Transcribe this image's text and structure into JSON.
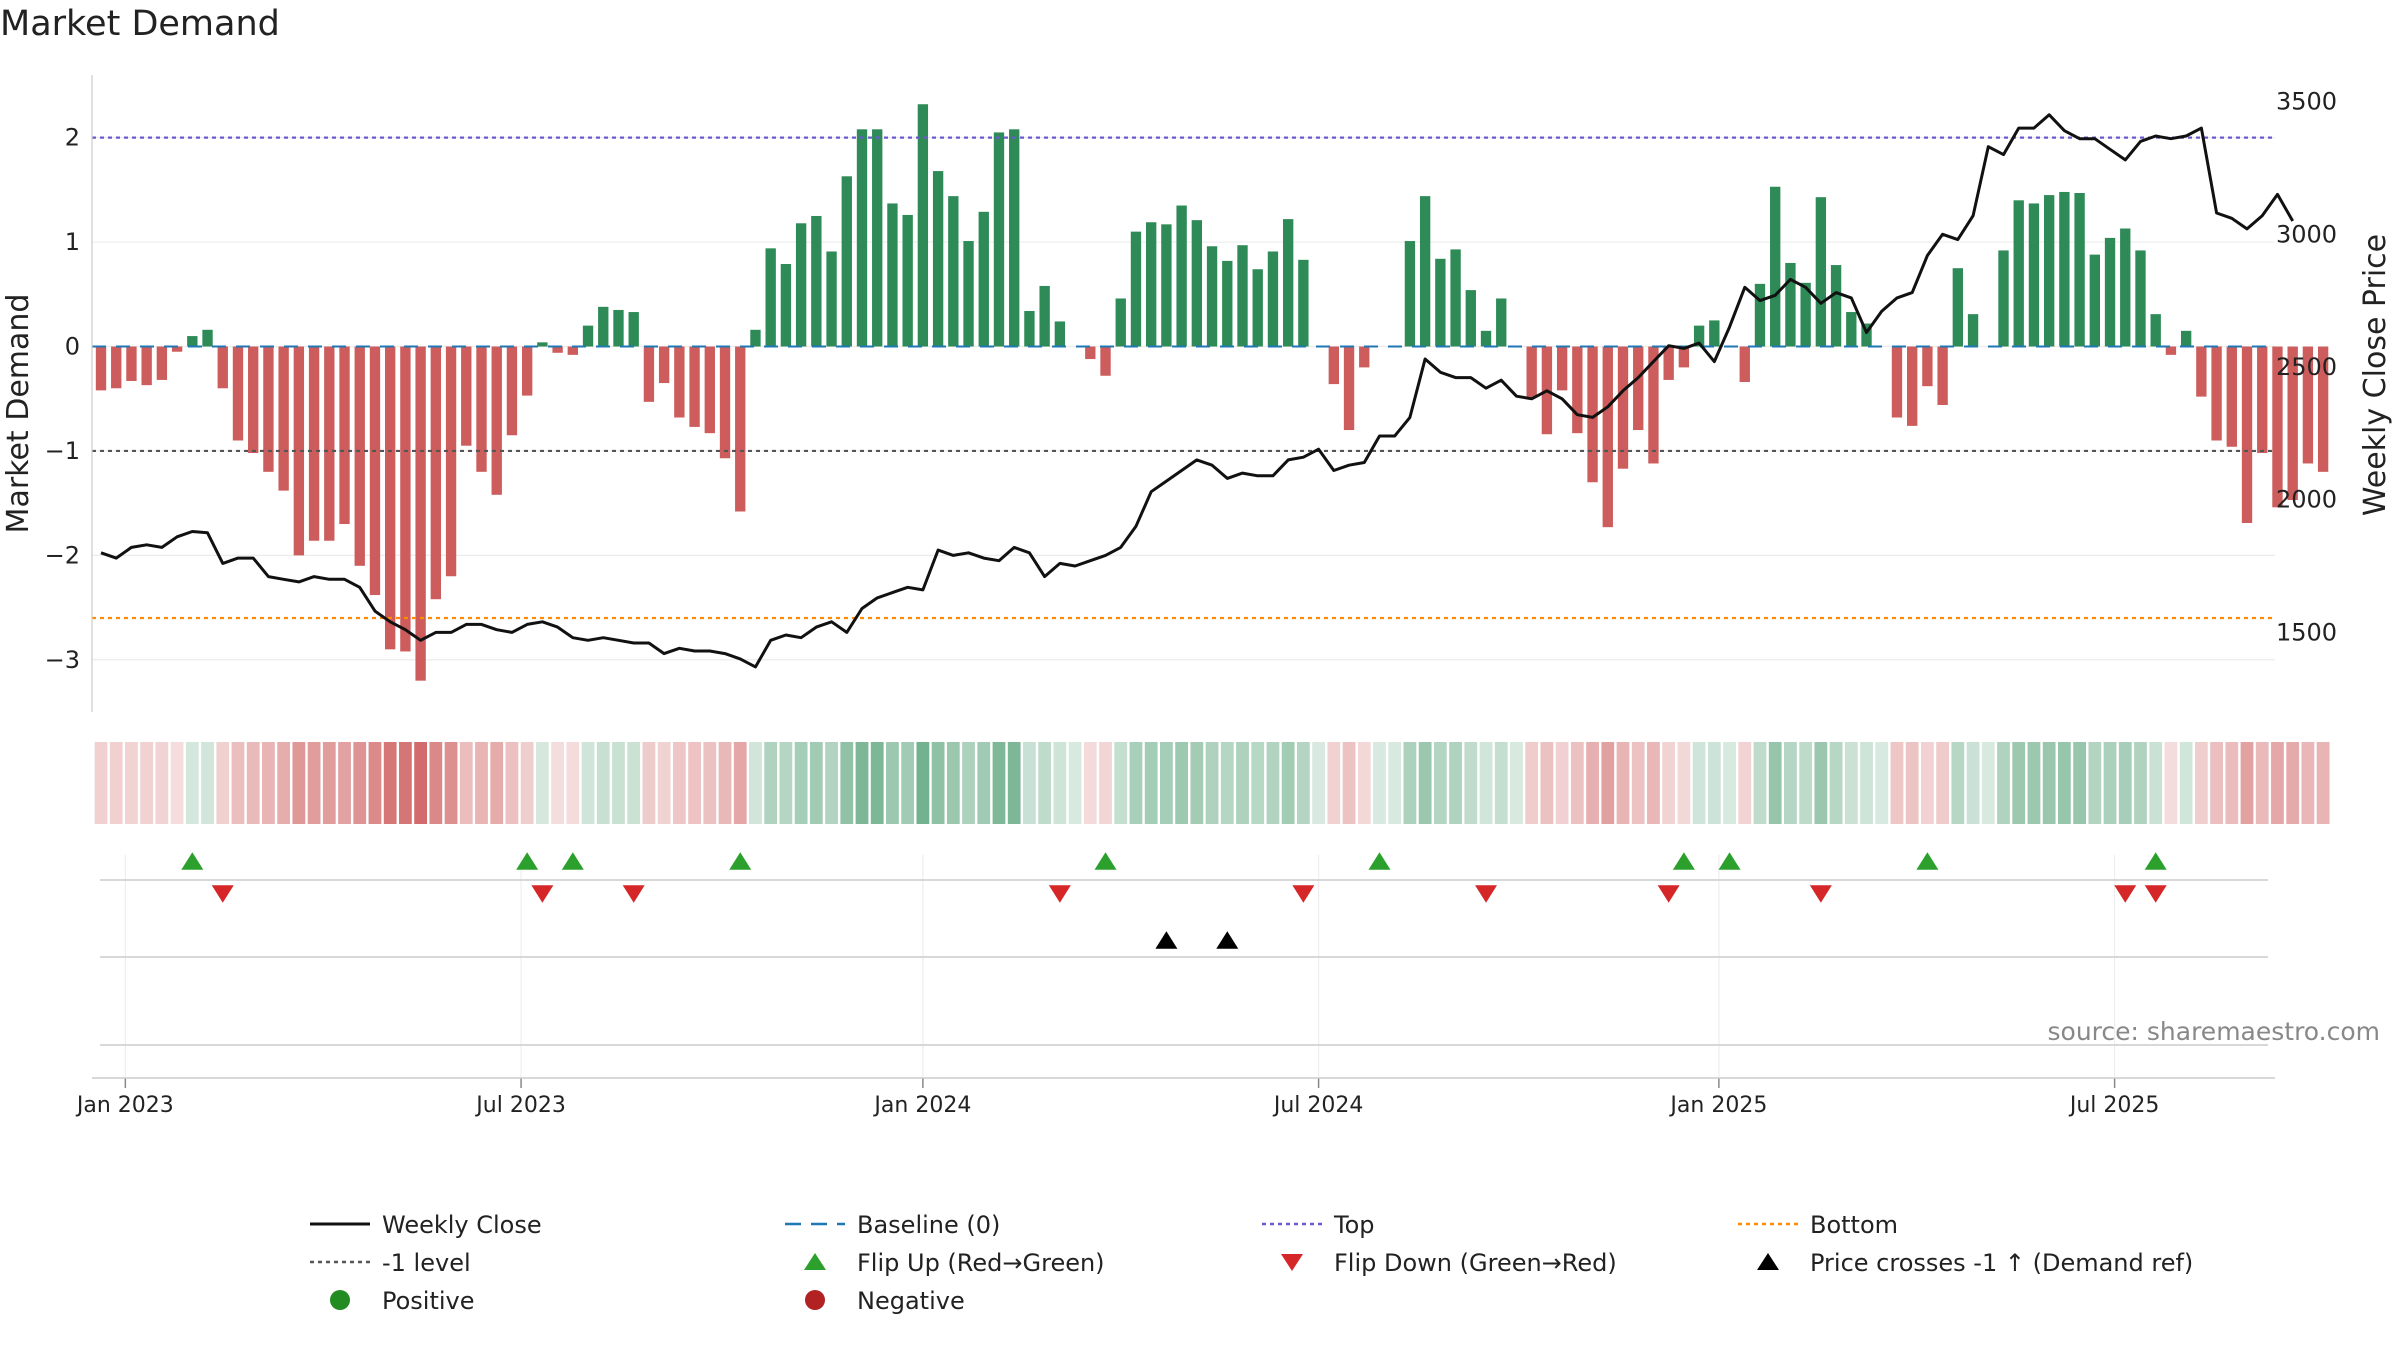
{
  "title": "Market Demand",
  "source": "source: sharemaestro.com",
  "colors": {
    "positive": "#2e8b57",
    "negative": "#cd5c5c",
    "price": "#111111",
    "baseline": "#1f77b4",
    "top": "#6a5acd",
    "minus1": "#555555",
    "bottom": "#ff8c00",
    "flip_up": "#2ca02c",
    "flip_down": "#d62728",
    "cross": "#000000",
    "positive_dot": "#228b22",
    "negative_dot": "#b22222"
  },
  "chart_data": {
    "type": "bar",
    "title": "Market Demand",
    "ylabel_left": "Market Demand",
    "ylabel_right": "Weekly Close Price",
    "ylim_left": [
      -3.5,
      2.6
    ],
    "yticks_left": [
      2,
      1,
      0,
      -1,
      -2,
      -3
    ],
    "ylim_right": [
      1200,
      3600
    ],
    "yticks_right": [
      3500,
      3000,
      2500,
      2000,
      1500
    ],
    "x_start": "2023-01-01",
    "x_step_weeks": 1,
    "date_ticks": [
      {
        "label": "Jan 2023",
        "week": 1.6
      },
      {
        "label": "Jul 2023",
        "week": 27.6
      },
      {
        "label": "Jan 2024",
        "week": 54
      },
      {
        "label": "Jul 2024",
        "week": 80
      },
      {
        "label": "Jan 2025",
        "week": 106.3
      },
      {
        "label": "Jul 2025",
        "week": 132.3
      }
    ],
    "reference_lines": {
      "top": 2,
      "minus1_level": -1,
      "bottom": -2.6,
      "baseline": 0
    },
    "demand": [
      -0.42,
      -0.4,
      -0.33,
      -0.37,
      -0.32,
      -0.05,
      0.1,
      0.16,
      -0.4,
      -0.9,
      -1.02,
      -1.2,
      -1.38,
      -2.0,
      -1.86,
      -1.86,
      -1.7,
      -2.1,
      -2.38,
      -2.9,
      -2.92,
      -3.2,
      -2.42,
      -2.2,
      -0.95,
      -1.2,
      -1.42,
      -0.85,
      -0.47,
      0.04,
      -0.06,
      -0.08,
      0.2,
      0.38,
      0.35,
      0.33,
      -0.53,
      -0.35,
      -0.68,
      -0.77,
      -0.83,
      -1.07,
      -1.58,
      0.16,
      0.94,
      0.79,
      1.18,
      1.25,
      0.91,
      1.63,
      2.08,
      2.08,
      1.37,
      1.26,
      2.32,
      1.68,
      1.44,
      1.01,
      1.29,
      2.05,
      2.08,
      0.34,
      0.58,
      0.24,
      0.0,
      -0.12,
      -0.28,
      0.46,
      1.1,
      1.19,
      1.17,
      1.35,
      1.21,
      0.96,
      0.82,
      0.97,
      0.74,
      0.91,
      1.22,
      0.83,
      0.0,
      -0.36,
      -0.8,
      -0.2,
      0.0,
      0.0,
      1.01,
      1.44,
      0.84,
      0.93,
      0.54,
      0.15,
      0.46,
      0.0,
      -0.49,
      -0.84,
      -0.42,
      -0.83,
      -1.3,
      -1.73,
      -1.17,
      -0.8,
      -1.12,
      -0.32,
      -0.2,
      0.2,
      0.25,
      0.0,
      -0.34,
      0.6,
      1.53,
      0.8,
      0.61,
      1.43,
      0.78,
      0.33,
      0.22,
      0.0,
      -0.68,
      -0.76,
      -0.38,
      -0.56,
      0.75,
      0.31,
      0.0,
      0.92,
      1.4,
      1.37,
      1.45,
      1.48,
      1.47,
      0.88,
      1.04,
      1.13,
      0.92,
      0.31,
      -0.08,
      0.15,
      -0.48,
      -0.9,
      -0.96,
      -1.69,
      -1.02,
      -1.54,
      -1.47,
      -1.12,
      -1.2
    ],
    "price": [
      1800,
      1780,
      1820,
      1830,
      1820,
      1860,
      1880,
      1875,
      1760,
      1780,
      1780,
      1710,
      1700,
      1690,
      1710,
      1700,
      1700,
      1670,
      1580,
      1540,
      1510,
      1470,
      1500,
      1500,
      1530,
      1530,
      1510,
      1500,
      1530,
      1540,
      1520,
      1480,
      1470,
      1480,
      1470,
      1460,
      1460,
      1420,
      1440,
      1430,
      1430,
      1420,
      1400,
      1370,
      1470,
      1490,
      1480,
      1520,
      1540,
      1500,
      1590,
      1630,
      1650,
      1670,
      1660,
      1810,
      1790,
      1800,
      1780,
      1770,
      1820,
      1800,
      1710,
      1760,
      1750,
      1770,
      1790,
      1820,
      1900,
      2030,
      2070,
      2110,
      2150,
      2130,
      2080,
      2100,
      2090,
      2090,
      2150,
      2160,
      2190,
      2110,
      2130,
      2140,
      2240,
      2240,
      2310,
      2530,
      2480,
      2460,
      2460,
      2420,
      2450,
      2390,
      2380,
      2410,
      2380,
      2320,
      2310,
      2350,
      2410,
      2460,
      2520,
      2580,
      2570,
      2590,
      2520,
      2650,
      2800,
      2750,
      2770,
      2830,
      2800,
      2740,
      2780,
      2760,
      2630,
      2710,
      2760,
      2780,
      2920,
      3000,
      2980,
      3070,
      3330,
      3300,
      3400,
      3400,
      3450,
      3390,
      3360,
      3360,
      3320,
      3280,
      3350,
      3370,
      3360,
      3370,
      3400,
      3080,
      3060,
      3020,
      3070,
      3150,
      3050
    ],
    "flip_up_weeks": [
      6,
      28,
      31,
      42,
      66,
      84,
      104,
      107,
      120,
      135
    ],
    "flip_down_weeks": [
      8,
      29,
      35,
      63,
      79,
      91,
      103,
      113,
      133,
      135
    ],
    "price_cross_weeks": [
      70,
      74
    ]
  },
  "legend": [
    {
      "label": "Weekly Close",
      "symbol": "line",
      "color": "#111111"
    },
    {
      "label": "Baseline (0)",
      "symbol": "dash",
      "color": "#1f77b4"
    },
    {
      "label": "Top",
      "symbol": "dot",
      "color": "#6a5acd"
    },
    {
      "label": "Bottom",
      "symbol": "dot",
      "color": "#ff8c00"
    },
    {
      "label": "-1 level",
      "symbol": "dot",
      "color": "#555555"
    },
    {
      "label": "Flip Up (Red→Green)",
      "symbol": "tri-up",
      "color": "#2ca02c"
    },
    {
      "label": "Flip Down (Green→Red)",
      "symbol": "tri-down",
      "color": "#d62728"
    },
    {
      "label": "Price crosses -1 ↑ (Demand ref)",
      "symbol": "tri-up",
      "color": "#000000"
    },
    {
      "label": "Positive",
      "symbol": "circle",
      "color": "#228b22"
    },
    {
      "label": "Negative",
      "symbol": "circle",
      "color": "#b22222"
    }
  ]
}
